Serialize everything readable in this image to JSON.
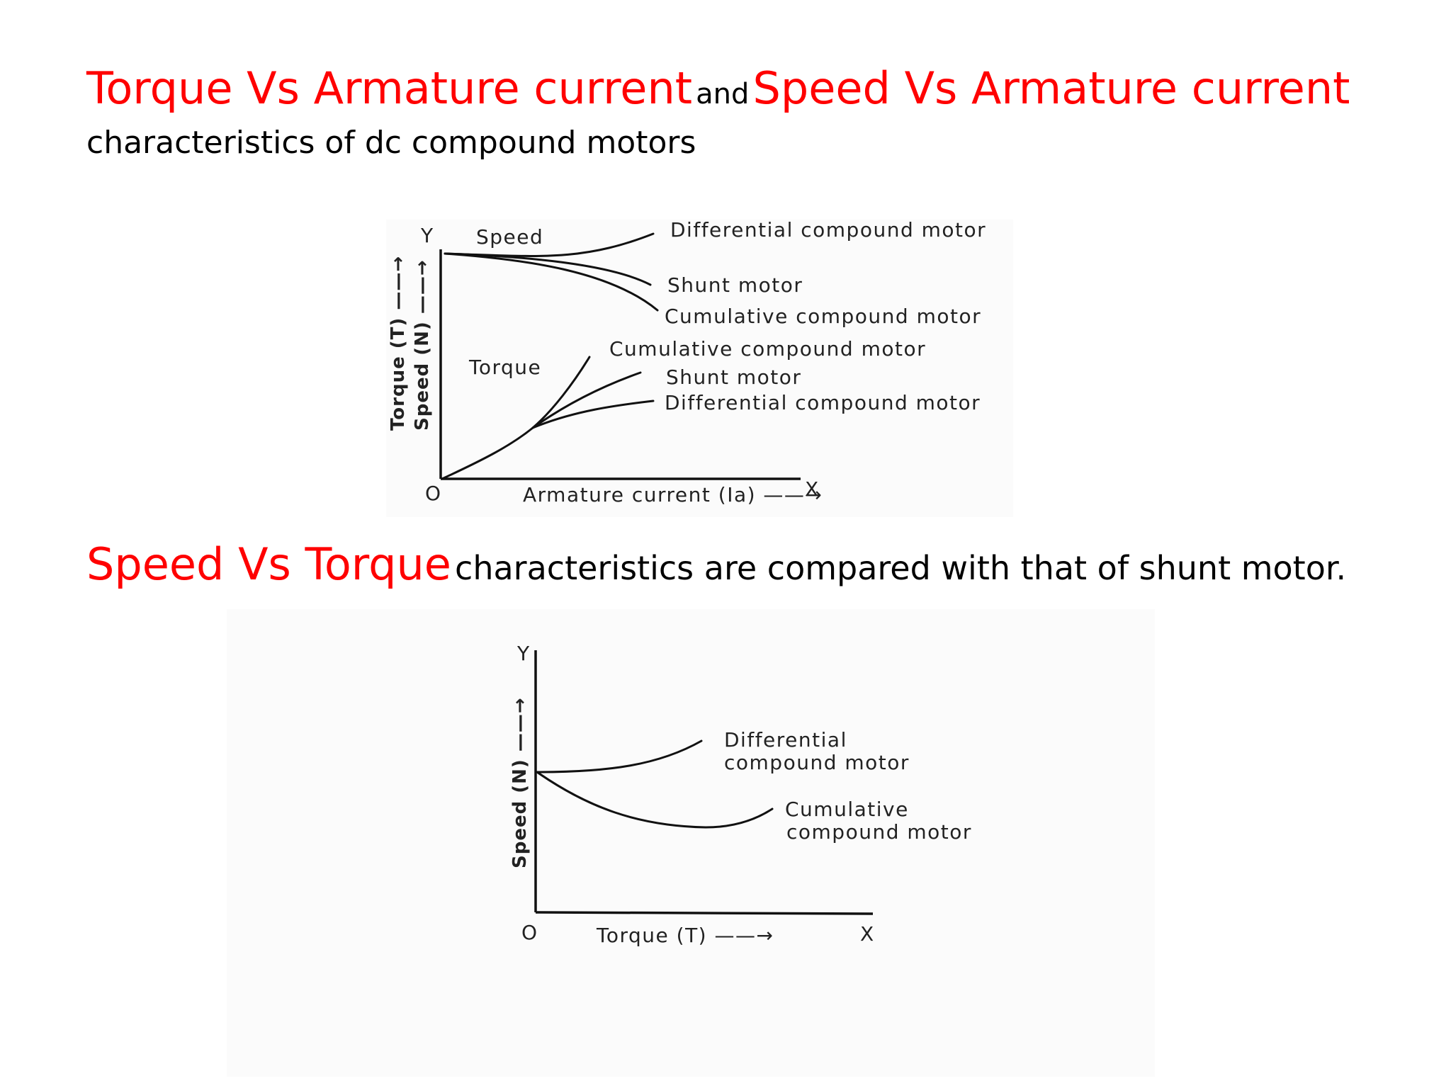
{
  "title_line_1": {
    "part1": "Torque Vs Armature current",
    "part2": "and",
    "part3": "Speed Vs Armature current"
  },
  "title_line_2": "characteristics of dc compound motors",
  "title_line_3": {
    "part1": "Speed Vs Torque",
    "part2": "characteristics are compared with that of shunt motor."
  },
  "diagram_1": {
    "y_axis_letter": "Y",
    "x_axis_letter": "X",
    "origin_label": "O",
    "y_label_top": "Torque (T) ——→",
    "y_label_bottom": "Speed (N) ——→",
    "x_label": "Armature current (Ia) ——→",
    "speed_group_label": "Speed",
    "torque_group_label": "Torque",
    "speed_curves": [
      "Differential compound motor",
      "Shunt motor",
      "Cumulative compound motor"
    ],
    "torque_curves": [
      "Cumulative compound motor",
      "Shunt motor",
      "Differential compound motor"
    ]
  },
  "diagram_2": {
    "y_axis_letter": "Y",
    "x_axis_letter": "X",
    "origin_label": "O",
    "y_label": "Speed (N) ——→",
    "x_label": "Torque (T) ——→",
    "curve_1_line1": "Differential",
    "curve_1_line2": "compound motor",
    "curve_2_line1": "Cumulative",
    "curve_2_line2": "compound motor"
  },
  "colors": {
    "accent": "#ff0000",
    "text": "#000000",
    "figure_background": "#fbfbfb"
  }
}
